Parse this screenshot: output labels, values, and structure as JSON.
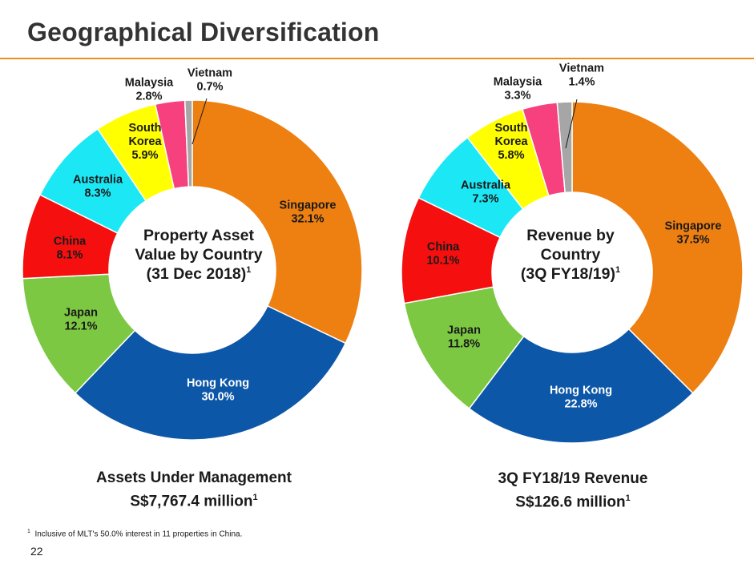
{
  "slide": {
    "title": "Geographical Diversification",
    "footnote_marker": "1",
    "footnote": "Inclusive of MLT's 50.0% interest in 11 properties in China.",
    "page_number": "22",
    "accent_color": "#f08c1e"
  },
  "chart_data": [
    {
      "type": "pie",
      "donut": true,
      "center_title_lines": [
        "Property Asset",
        "Value by Country",
        "(31 Dec 2018)"
      ],
      "center_superscript": "1",
      "caption_lines": [
        "Assets Under Management",
        "S$7,767.4 million"
      ],
      "caption_superscript": "1",
      "categories": [
        "Singapore",
        "Hong Kong",
        "Japan",
        "China",
        "Australia",
        "South Korea",
        "Malaysia",
        "Vietnam"
      ],
      "label_lines": [
        [
          "Singapore"
        ],
        [
          "Hong Kong"
        ],
        [
          "Japan"
        ],
        [
          "China"
        ],
        [
          "Australia"
        ],
        [
          "South",
          "Korea"
        ],
        [
          "Malaysia"
        ],
        [
          "Vietnam"
        ]
      ],
      "values": [
        32.1,
        30.0,
        12.1,
        8.1,
        8.3,
        5.9,
        2.8,
        0.7
      ],
      "value_labels": [
        "32.1%",
        "30.0%",
        "12.1%",
        "8.1%",
        "8.3%",
        "5.9%",
        "2.8%",
        "0.7%"
      ],
      "colors": [
        "#ee7f11",
        "#0d57a8",
        "#7dc842",
        "#f50f0f",
        "#1ce8f5",
        "#ffff00",
        "#f7407e",
        "#a6a6a6"
      ]
    },
    {
      "type": "pie",
      "donut": true,
      "center_title_lines": [
        "Revenue by",
        "Country",
        "(3Q FY18/19)"
      ],
      "center_superscript": "1",
      "caption_lines": [
        "3Q FY18/19 Revenue",
        "S$126.6 million"
      ],
      "caption_superscript": "1",
      "categories": [
        "Singapore",
        "Hong Kong",
        "Japan",
        "China",
        "Australia",
        "South Korea",
        "Malaysia",
        "Vietnam"
      ],
      "label_lines": [
        [
          "Singapore"
        ],
        [
          "Hong Kong"
        ],
        [
          "Japan"
        ],
        [
          "China"
        ],
        [
          "Australia"
        ],
        [
          "South",
          "Korea"
        ],
        [
          "Malaysia"
        ],
        [
          "Vietnam"
        ]
      ],
      "values": [
        37.5,
        22.8,
        11.8,
        10.1,
        7.3,
        5.8,
        3.3,
        1.4
      ],
      "value_labels": [
        "37.5%",
        "22.8%",
        "11.8%",
        "10.1%",
        "7.3%",
        "5.8%",
        "3.3%",
        "1.4%"
      ],
      "colors": [
        "#ee7f11",
        "#0d57a8",
        "#7dc842",
        "#f50f0f",
        "#1ce8f5",
        "#ffff00",
        "#f7407e",
        "#a6a6a6"
      ]
    }
  ]
}
